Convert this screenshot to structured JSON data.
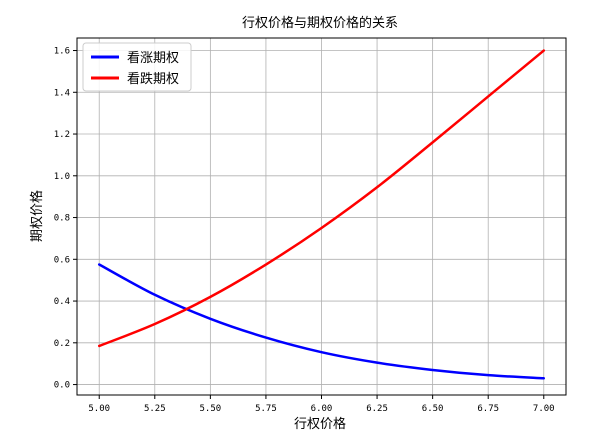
{
  "chart_data": {
    "type": "line",
    "title": "行权价格与期权价格的关系",
    "xlabel": "行权价格",
    "ylabel": "期权价格",
    "xlim": [
      4.9,
      7.1
    ],
    "ylim": [
      -0.05,
      1.66
    ],
    "grid": true,
    "legend_position": "top-left",
    "xticks": [
      5.0,
      5.25,
      5.5,
      5.75,
      6.0,
      6.25,
      6.5,
      6.75,
      7.0
    ],
    "xtick_labels": [
      "5.00",
      "5.25",
      "5.50",
      "5.75",
      "6.00",
      "6.25",
      "6.50",
      "6.75",
      "7.00"
    ],
    "yticks": [
      0.0,
      0.2,
      0.4,
      0.6,
      0.8,
      1.0,
      1.2,
      1.4,
      1.6
    ],
    "ytick_labels": [
      "0.0",
      "0.2",
      "0.4",
      "0.6",
      "0.8",
      "1.0",
      "1.2",
      "1.4",
      "1.6"
    ],
    "x": [
      5.0,
      5.25,
      5.5,
      5.75,
      6.0,
      6.25,
      6.5,
      6.75,
      7.0
    ],
    "series": [
      {
        "name": "看涨期权",
        "color": "#0000ff",
        "values": [
          0.575,
          0.43,
          0.315,
          0.225,
          0.155,
          0.105,
          0.07,
          0.045,
          0.03
        ]
      },
      {
        "name": "看跌期权",
        "color": "#ff0000",
        "values": [
          0.185,
          0.29,
          0.42,
          0.575,
          0.75,
          0.945,
          1.16,
          1.38,
          1.6
        ]
      }
    ]
  }
}
